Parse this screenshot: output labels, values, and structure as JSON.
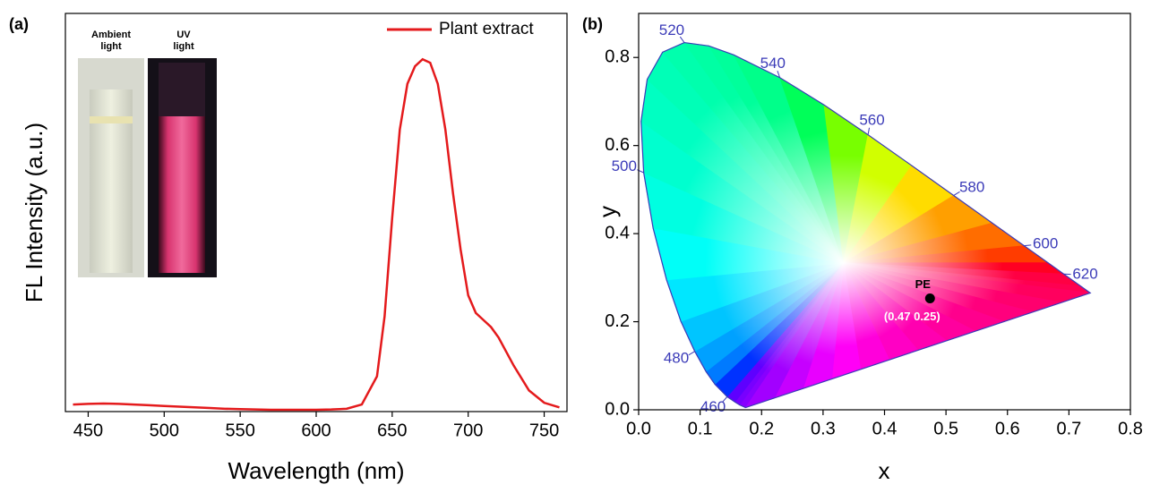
{
  "chart_data": [
    {
      "type": "line",
      "panel": "(a)",
      "xlabel": "Wavelength (nm)",
      "ylabel": "FL Intensity (a.u.)",
      "xlim": [
        435,
        765
      ],
      "xticks": [
        450,
        500,
        550,
        600,
        650,
        700,
        750
      ],
      "ylim": [
        0,
        1.13
      ],
      "legend": "top-right",
      "inset_labels": [
        "Ambient light",
        "UV light"
      ],
      "x": [
        440,
        450,
        460,
        470,
        480,
        490,
        500,
        510,
        520,
        530,
        540,
        550,
        560,
        570,
        580,
        590,
        600,
        610,
        620,
        630,
        640,
        645,
        650,
        655,
        660,
        665,
        670,
        675,
        680,
        685,
        690,
        695,
        700,
        705,
        710,
        715,
        720,
        730,
        740,
        750,
        760
      ],
      "series": [
        {
          "name": "Plant extract",
          "color": "#e41a1c",
          "values": [
            0.02,
            0.022,
            0.023,
            0.022,
            0.02,
            0.018,
            0.016,
            0.014,
            0.012,
            0.01,
            0.008,
            0.007,
            0.006,
            0.005,
            0.005,
            0.005,
            0.005,
            0.006,
            0.008,
            0.02,
            0.1,
            0.27,
            0.55,
            0.8,
            0.93,
            0.98,
            1.0,
            0.99,
            0.93,
            0.8,
            0.62,
            0.46,
            0.33,
            0.28,
            0.26,
            0.24,
            0.21,
            0.13,
            0.06,
            0.025,
            0.012
          ]
        }
      ]
    },
    {
      "type": "chromaticity",
      "panel": "(b)",
      "xlabel": "x",
      "ylabel": "y",
      "xlim": [
        0,
        0.8
      ],
      "xticks": [
        {
          "value": 0,
          "label": "0.0"
        },
        0.1,
        0.2,
        0.3,
        0.4,
        0.5,
        0.6,
        0.7,
        0.8
      ],
      "ylim": [
        0,
        0.9
      ],
      "yticks": [
        {
          "value": 0,
          "label": "0.0"
        },
        0.2,
        0.4,
        0.6,
        0.8
      ],
      "locus": {
        "color": "#3b3bb8",
        "labels": [
          null,
          null,
          null,
          460,
          null,
          null,
          480,
          null,
          null,
          null,
          500,
          null,
          null,
          null,
          520,
          null,
          null,
          540,
          null,
          560,
          null,
          580,
          null,
          600,
          null,
          620,
          null,
          null
        ],
        "x": [
          0.1741,
          0.1644,
          0.1566,
          0.144,
          0.1241,
          0.1096,
          0.0913,
          0.0687,
          0.0454,
          0.0235,
          0.0082,
          0.0039,
          0.0139,
          0.0389,
          0.0743,
          0.1142,
          0.1547,
          0.2296,
          0.3016,
          0.3731,
          0.4441,
          0.5125,
          0.5752,
          0.627,
          0.6658,
          0.6915,
          0.719,
          0.7347
        ],
        "y": [
          0.005,
          0.0109,
          0.0177,
          0.0297,
          0.0578,
          0.0868,
          0.1327,
          0.2007,
          0.295,
          0.4127,
          0.5384,
          0.6548,
          0.7502,
          0.812,
          0.8338,
          0.8262,
          0.8059,
          0.7543,
          0.6923,
          0.6245,
          0.5547,
          0.4866,
          0.4242,
          0.3725,
          0.334,
          0.3083,
          0.2809,
          0.2653
        ]
      },
      "points": [
        {
          "name": "PE",
          "x": 0.474,
          "y": 0.253,
          "label": "(0.47 0.25)"
        }
      ]
    }
  ]
}
